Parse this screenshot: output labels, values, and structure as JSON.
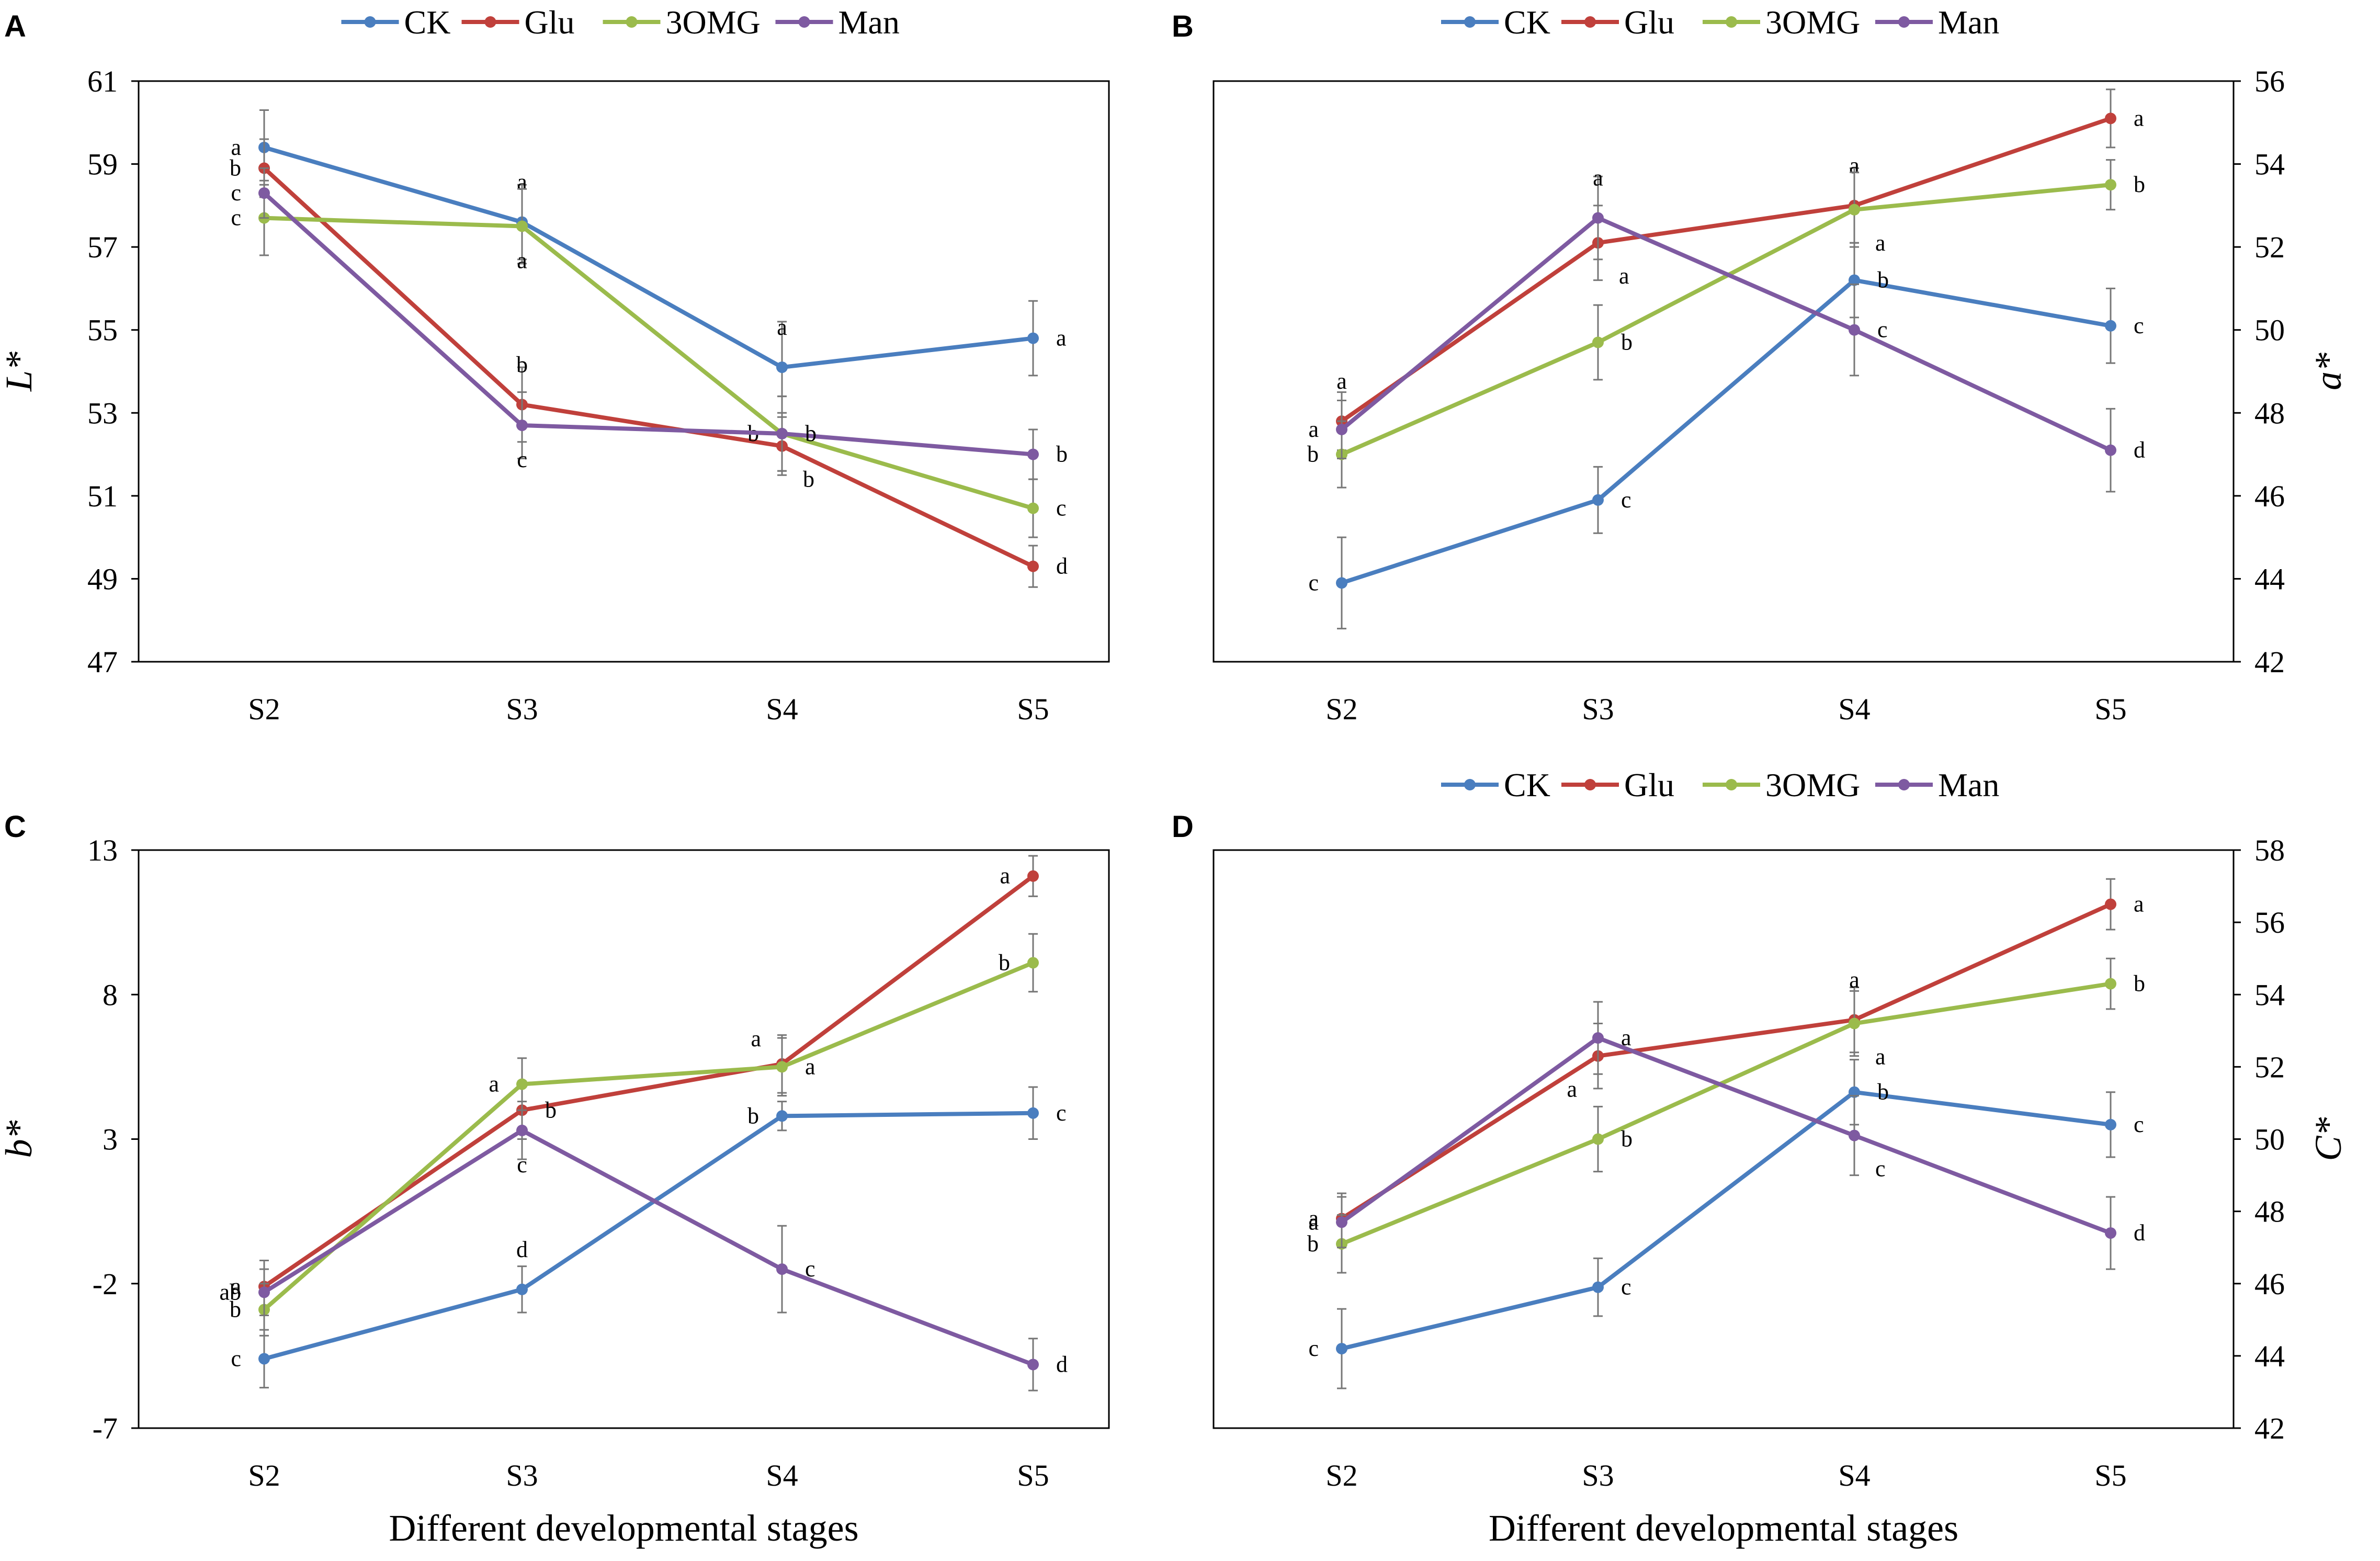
{
  "figure": {
    "x_axis_title": "Different developmental stages"
  },
  "legend": [
    {
      "name": "CK",
      "color": "#4a7ebf"
    },
    {
      "name": "Glu",
      "color": "#c0403b"
    },
    {
      "name": "3OMG",
      "color": "#9bbb4c"
    },
    {
      "name": "Man",
      "color": "#7e5aa1"
    }
  ],
  "chart_data": [
    {
      "panel": "A",
      "type": "line",
      "categories": [
        "S2",
        "S3",
        "S4",
        "S5"
      ],
      "ylabel": "L*",
      "y_axis_side": "left",
      "ylim": [
        47,
        61
      ],
      "yticks": [
        "61",
        "59",
        "57",
        "55",
        "53",
        "51",
        "49",
        "47"
      ],
      "yticks_values": [
        61,
        59,
        57,
        55,
        53,
        51,
        49,
        47
      ],
      "series": [
        {
          "name": "CK",
          "values": [
            59.4,
            57.6,
            54.1,
            54.8
          ],
          "errors": [
            0.9,
            0.9,
            1.1,
            0.9
          ],
          "labels": [
            "a",
            "a",
            "a",
            "a"
          ],
          "label_pos": [
            "left",
            "above",
            "above",
            "right"
          ]
        },
        {
          "name": "Glu",
          "values": [
            58.9,
            53.2,
            52.2,
            49.3
          ],
          "errors": [
            0.7,
            0.9,
            0.7,
            0.5
          ],
          "labels": [
            "b",
            "b",
            "b",
            "d"
          ],
          "label_pos": [
            "left",
            "above",
            "below-right",
            "right"
          ]
        },
        {
          "name": "3OMG",
          "values": [
            57.7,
            57.5,
            52.5,
            50.7
          ],
          "errors": [
            0.9,
            0.9,
            0.9,
            0.7
          ],
          "labels": [
            "c",
            "a",
            "b",
            "c"
          ],
          "label_pos": [
            "left",
            "below",
            "left",
            "right"
          ]
        },
        {
          "name": "Man",
          "values": [
            58.3,
            52.7,
            52.5,
            52.0
          ],
          "errors": [
            0.6,
            0.8,
            0.9,
            0.6
          ],
          "labels": [
            "c",
            "c",
            "b",
            "b"
          ],
          "label_pos": [
            "left",
            "below",
            "right",
            "right"
          ]
        }
      ]
    },
    {
      "panel": "B",
      "type": "line",
      "categories": [
        "S2",
        "S3",
        "S4",
        "S5"
      ],
      "ylabel": "a*",
      "y_axis_side": "right",
      "ylim": [
        42,
        56
      ],
      "yticks": [
        "56",
        "54",
        "52",
        "50",
        "48",
        "46",
        "44",
        "42"
      ],
      "yticks_values": [
        56,
        54,
        52,
        50,
        48,
        46,
        44,
        42
      ],
      "series": [
        {
          "name": "CK",
          "values": [
            43.9,
            45.9,
            51.2,
            50.1
          ],
          "errors": [
            1.1,
            0.8,
            0.9,
            0.9
          ],
          "labels": [
            "c",
            "c",
            "b",
            "c"
          ],
          "label_pos": [
            "left",
            "right",
            "right",
            "right"
          ]
        },
        {
          "name": "Glu",
          "values": [
            47.8,
            52.1,
            53.0,
            55.1
          ],
          "errors": [
            0.7,
            0.9,
            0.9,
            0.7
          ],
          "labels": [
            "a",
            "a",
            "a",
            "a"
          ],
          "label_pos": [
            "above",
            "below-right",
            "above",
            "right"
          ]
        },
        {
          "name": "3OMG",
          "values": [
            47.0,
            49.7,
            52.9,
            53.5
          ],
          "errors": [
            0.8,
            0.9,
            0.9,
            0.6
          ],
          "labels": [
            "b",
            "b",
            "a",
            "b"
          ],
          "label_pos": [
            "left",
            "right",
            "below-right",
            "right"
          ]
        },
        {
          "name": "Man",
          "values": [
            47.6,
            52.7,
            50.0,
            47.1
          ],
          "errors": [
            0.7,
            1.0,
            1.1,
            1.0
          ],
          "labels": [
            "a",
            "a",
            "c",
            "d"
          ],
          "label_pos": [
            "left",
            "above",
            "right",
            "right"
          ]
        }
      ]
    },
    {
      "panel": "C",
      "type": "line",
      "categories": [
        "S2",
        "S3",
        "S4",
        "S5"
      ],
      "ylabel": "b*",
      "y_axis_side": "left",
      "ylim": [
        -7,
        13
      ],
      "yticks": [
        "13",
        "8",
        "3",
        "-2",
        "-7"
      ],
      "yticks_values": [
        13,
        8,
        3,
        -2,
        -7
      ],
      "series": [
        {
          "name": "CK",
          "values": [
            -4.6,
            -2.2,
            3.8,
            3.9
          ],
          "errors": [
            1.0,
            0.8,
            0.5,
            0.9
          ],
          "labels": [
            "c",
            "d",
            "b",
            "c"
          ],
          "label_pos": [
            "left",
            "above",
            "left",
            "right"
          ]
        },
        {
          "name": "Glu",
          "values": [
            -2.1,
            4.0,
            5.6,
            12.1
          ],
          "errors": [
            0.9,
            1.0,
            1.0,
            0.7
          ],
          "labels": [
            "a",
            "b",
            "a",
            "a"
          ],
          "label_pos": [
            "left",
            "right",
            "above-left",
            "left"
          ]
        },
        {
          "name": "3OMG",
          "values": [
            -2.9,
            4.9,
            5.5,
            9.1
          ],
          "errors": [
            0.9,
            0.9,
            1.0,
            1.0
          ],
          "labels": [
            "b",
            "a",
            "a",
            "b"
          ],
          "label_pos": [
            "left",
            "left",
            "right",
            "left"
          ]
        },
        {
          "name": "Man",
          "values": [
            -2.3,
            3.3,
            -1.5,
            -4.8
          ],
          "errors": [
            0.8,
            1.0,
            1.5,
            0.9
          ],
          "labels": [
            "ab",
            "c",
            "c",
            "d"
          ],
          "label_pos": [
            "left",
            "below",
            "right",
            "right"
          ]
        }
      ]
    },
    {
      "panel": "D",
      "type": "line",
      "categories": [
        "S2",
        "S3",
        "S4",
        "S5"
      ],
      "ylabel": "C*",
      "y_axis_side": "right",
      "ylim": [
        42,
        58
      ],
      "yticks": [
        "58",
        "56",
        "54",
        "52",
        "50",
        "48",
        "46",
        "44",
        "42"
      ],
      "yticks_values": [
        58,
        56,
        54,
        52,
        50,
        48,
        46,
        44,
        42
      ],
      "series": [
        {
          "name": "CK",
          "values": [
            44.2,
            45.9,
            51.3,
            50.4
          ],
          "errors": [
            1.1,
            0.8,
            0.9,
            0.9
          ],
          "labels": [
            "c",
            "c",
            "b",
            "c"
          ],
          "label_pos": [
            "left",
            "right",
            "right",
            "right"
          ]
        },
        {
          "name": "Glu",
          "values": [
            47.8,
            52.3,
            53.3,
            56.5
          ],
          "errors": [
            0.7,
            0.9,
            0.9,
            0.7
          ],
          "labels": [
            "a",
            "a",
            "a",
            "a"
          ],
          "label_pos": [
            "left",
            "below-left",
            "above",
            "right"
          ]
        },
        {
          "name": "3OMG",
          "values": [
            47.1,
            50.0,
            53.2,
            54.3
          ],
          "errors": [
            0.8,
            0.9,
            0.9,
            0.7
          ],
          "labels": [
            "b",
            "b",
            "a",
            "b"
          ],
          "label_pos": [
            "left",
            "right",
            "below-right",
            "right"
          ]
        },
        {
          "name": "Man",
          "values": [
            47.7,
            52.8,
            50.1,
            47.4
          ],
          "errors": [
            0.7,
            1.0,
            1.1,
            1.0
          ],
          "labels": [
            "a",
            "a",
            "c",
            "d"
          ],
          "label_pos": [
            "left",
            "right",
            "below-right",
            "right"
          ]
        }
      ]
    }
  ]
}
